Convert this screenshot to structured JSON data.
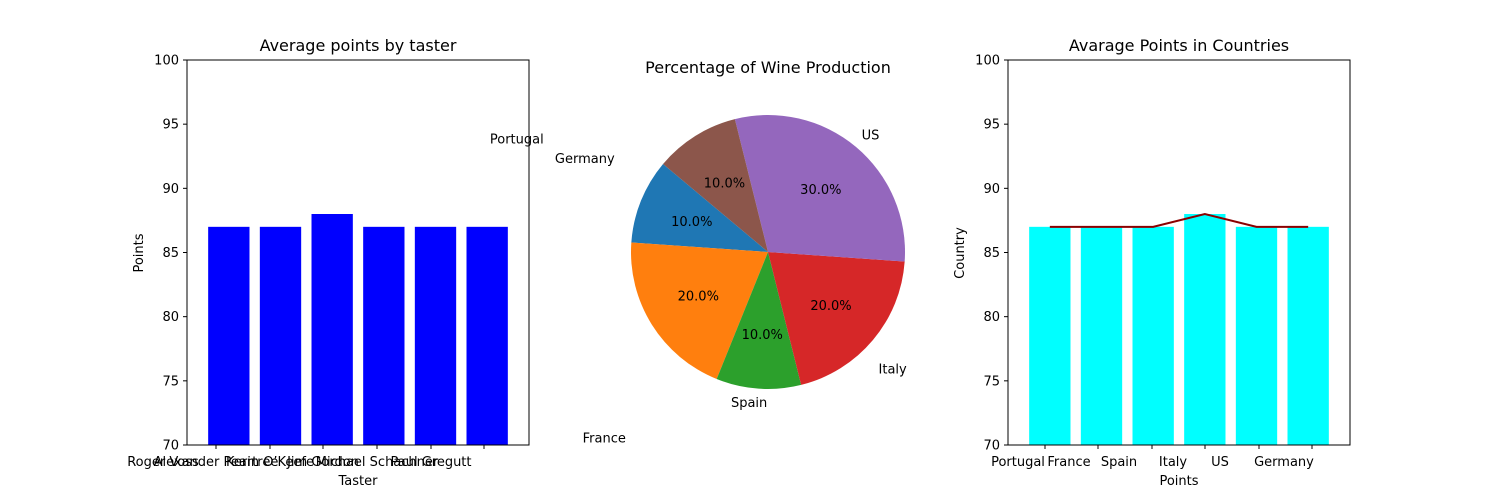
{
  "chart_data": [
    {
      "type": "bar",
      "title": "Average points by taster",
      "xlabel": "Taster",
      "ylabel": "Points",
      "ylim": [
        70,
        100
      ],
      "yticks": [
        70,
        75,
        80,
        85,
        90,
        95,
        100
      ],
      "categories": [
        "Roger Voss",
        "Alexander Peartree",
        "Kerin O’Keefe",
        "Jim Gordon",
        "Michael Schachner",
        "Paul Gregutt"
      ],
      "tick_labels_rendered": [
        "Roger Voss",
        "Alexander Peartree",
        "Kerin O’Keefe",
        "Jim Gordon",
        "Michael Schachner",
        "Paul Gregutt"
      ],
      "values": [
        87,
        87,
        88,
        87,
        87,
        87
      ],
      "color": "#0000ff"
    },
    {
      "type": "pie",
      "title": "Percentage of Wine Production",
      "labels": [
        "Portugal",
        "France",
        "Spain",
        "Italy",
        "US",
        "Germany"
      ],
      "values": [
        10,
        20,
        10,
        20,
        30,
        10
      ],
      "autopct": [
        "10.0%",
        "20.0%",
        "10.0%",
        "20.0%",
        "30.0%",
        "10.0%"
      ],
      "colors": [
        "#1f77b4",
        "#ff7f0e",
        "#2ca02c",
        "#d62728",
        "#9467bd",
        "#8c564b"
      ],
      "startangle": 140
    },
    {
      "type": "bar",
      "title": "Avarage Points in Countries",
      "xlabel": "Points",
      "ylabel": "Country",
      "ylim": [
        70,
        100
      ],
      "yticks": [
        70,
        75,
        80,
        85,
        90,
        95,
        100
      ],
      "categories": [
        "Portugal",
        "France",
        "Spain",
        "Italy",
        "US",
        "Germany"
      ],
      "values": [
        87,
        87,
        87,
        88,
        87,
        87
      ],
      "color": "#00ffff",
      "line": {
        "values": [
          87,
          87,
          87,
          88,
          87,
          87
        ],
        "color": "#8b0000"
      }
    }
  ]
}
